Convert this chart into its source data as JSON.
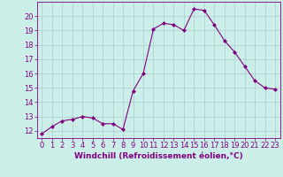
{
  "x": [
    0,
    1,
    2,
    3,
    4,
    5,
    6,
    7,
    8,
    9,
    10,
    11,
    12,
    13,
    14,
    15,
    16,
    17,
    18,
    19,
    20,
    21,
    22,
    23
  ],
  "y": [
    11.8,
    12.3,
    12.7,
    12.8,
    13.0,
    12.9,
    12.5,
    12.5,
    12.1,
    14.8,
    16.0,
    19.1,
    19.5,
    19.4,
    19.0,
    20.5,
    20.4,
    19.4,
    18.3,
    17.5,
    16.5,
    15.5,
    15.0,
    14.9
  ],
  "line_color": "#800080",
  "marker": "D",
  "marker_size": 2.0,
  "bg_color": "#cceee8",
  "grid_color": "#aacccc",
  "xlabel": "Windchill (Refroidissement éolien,°C)",
  "ylim": [
    11.5,
    21.0
  ],
  "xlim": [
    -0.5,
    23.5
  ],
  "yticks": [
    12,
    13,
    14,
    15,
    16,
    17,
    18,
    19,
    20
  ],
  "xticks": [
    0,
    1,
    2,
    3,
    4,
    5,
    6,
    7,
    8,
    9,
    10,
    11,
    12,
    13,
    14,
    15,
    16,
    17,
    18,
    19,
    20,
    21,
    22,
    23
  ],
  "label_color": "#800080",
  "tick_color": "#800080",
  "font_size": 6.0,
  "xlabel_fontsize": 6.5,
  "lw": 0.8
}
